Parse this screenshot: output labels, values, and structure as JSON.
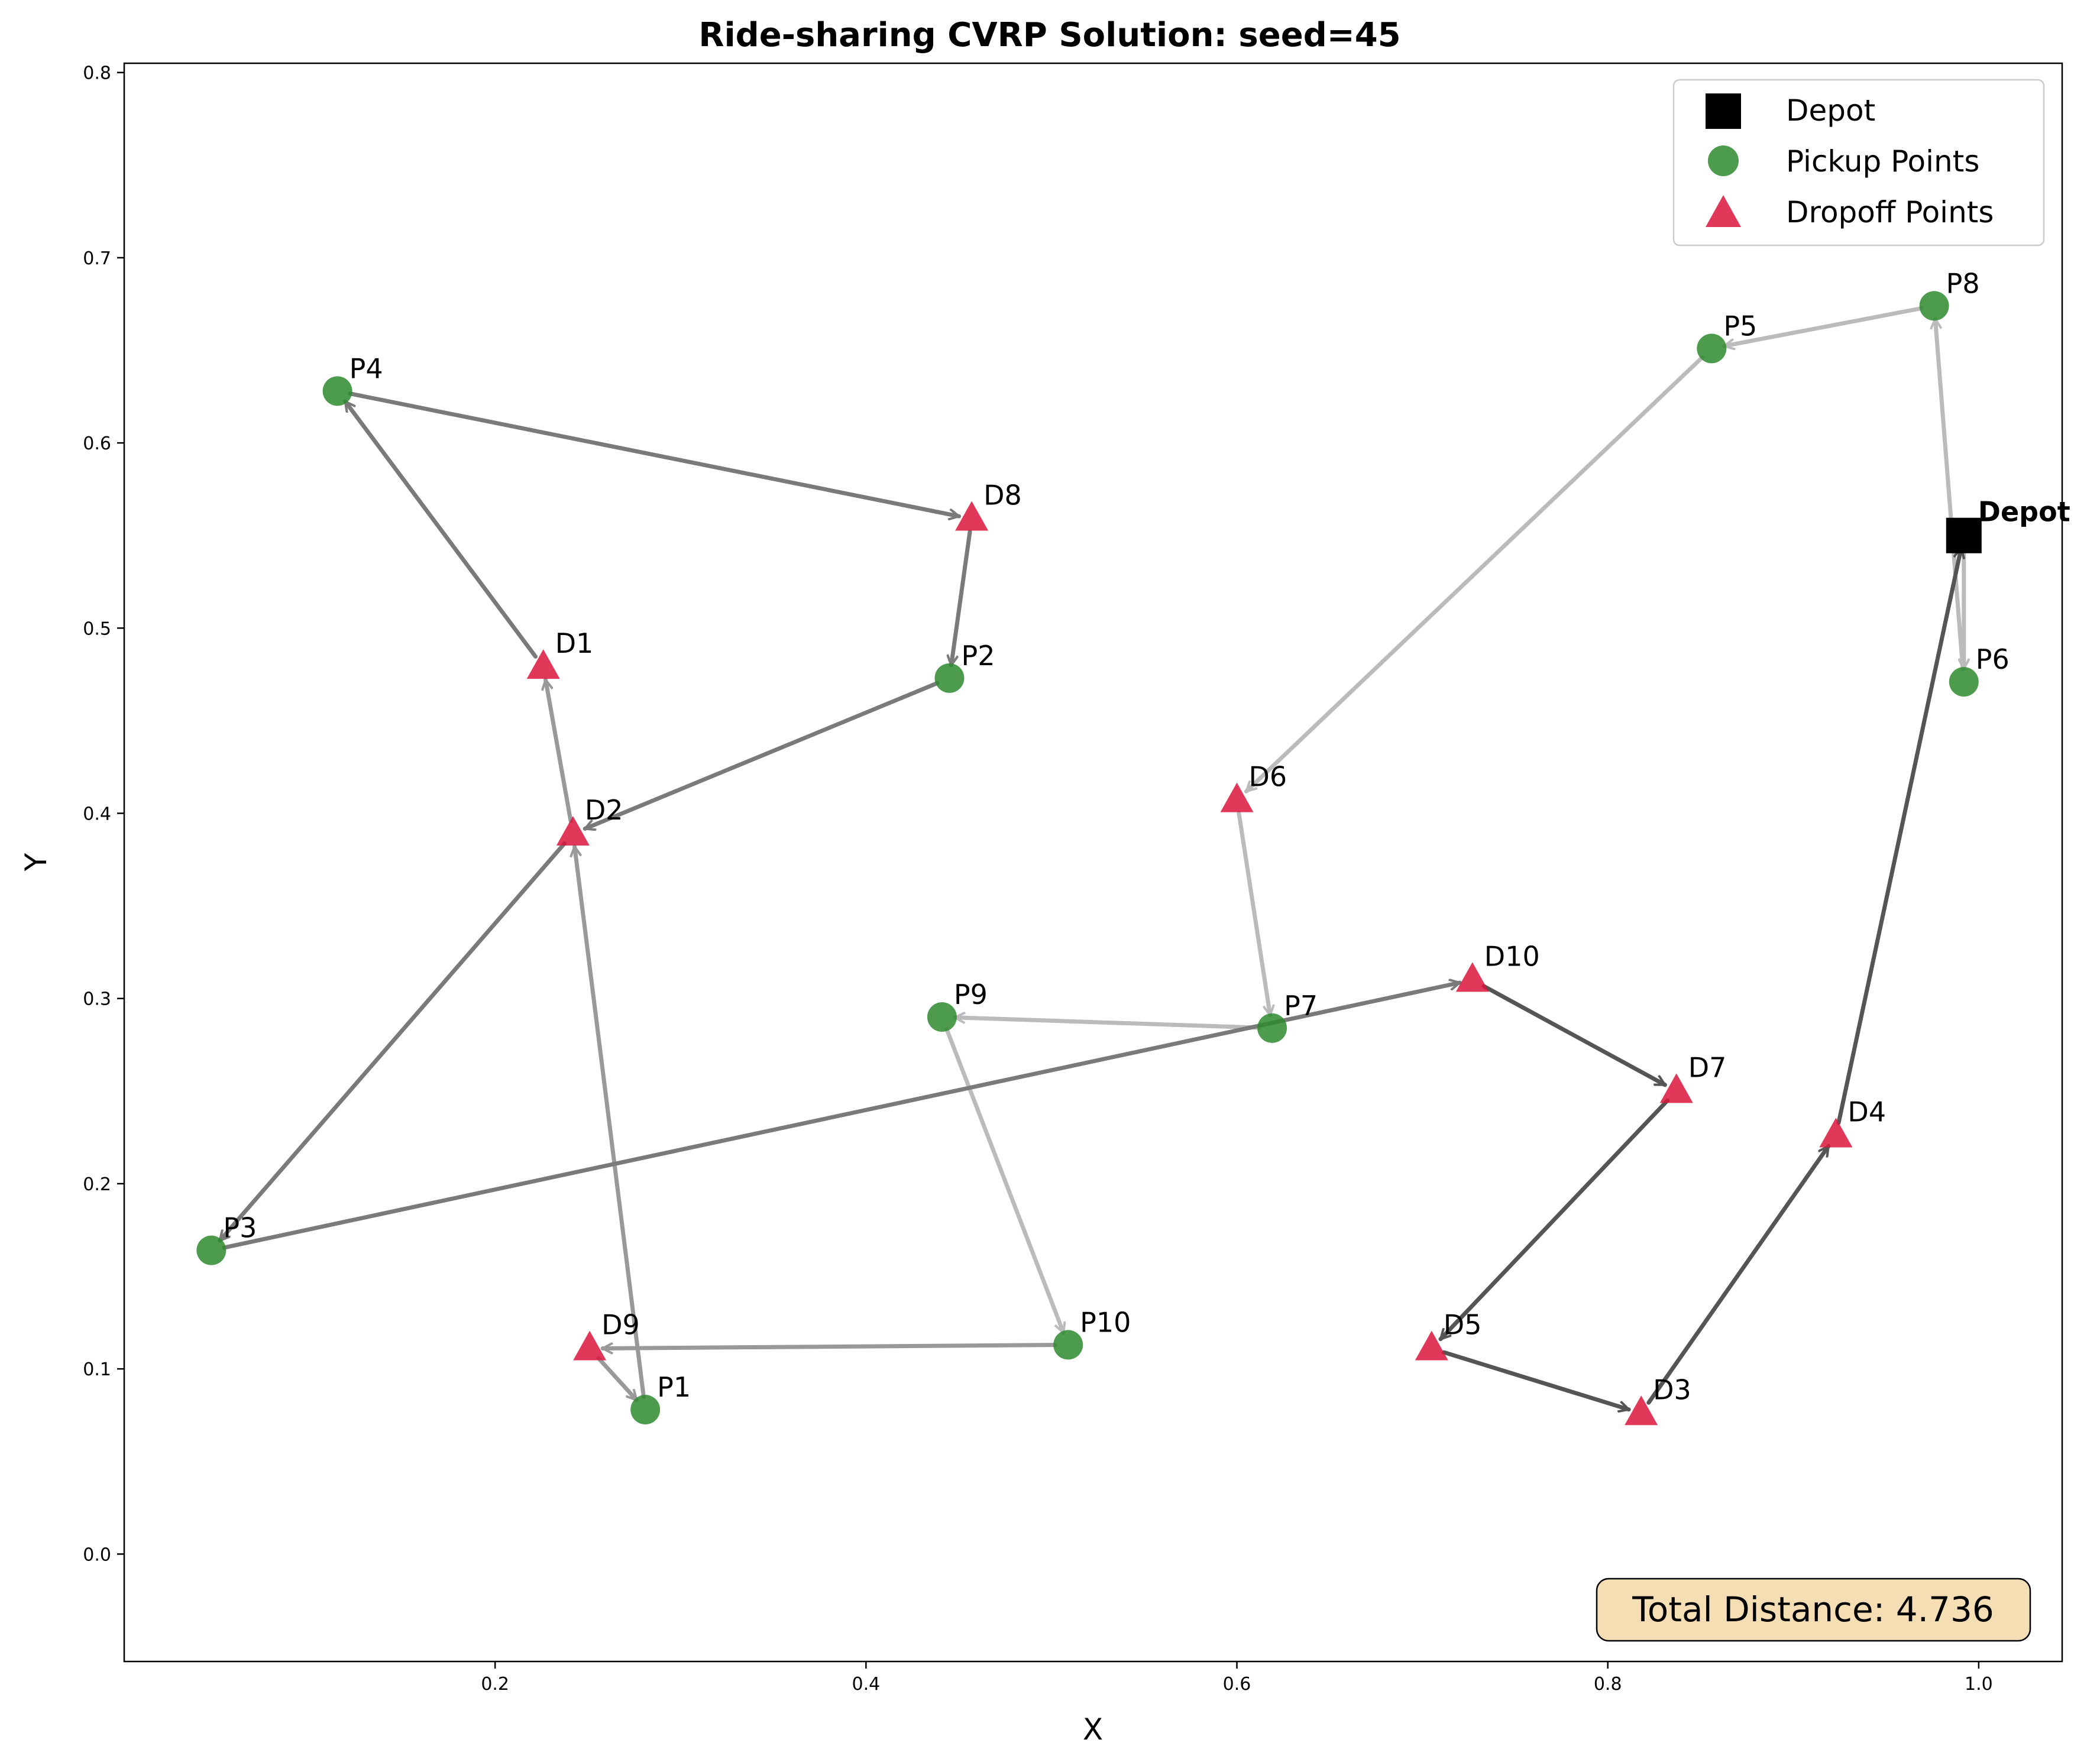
{
  "chart_data": {
    "type": "scatter",
    "title": "Ride-sharing CVRP Solution: seed=45",
    "xlabel": "X",
    "ylabel": "Y",
    "xlim": [
      0.0,
      1.045
    ],
    "ylim": [
      -0.058,
      0.805
    ],
    "xticks": [
      0.2,
      0.4,
      0.6,
      0.8,
      1.0
    ],
    "xtick_labels": [
      "0.2",
      "0.4",
      "0.6",
      "0.8",
      "1.0"
    ],
    "yticks": [
      0.0,
      0.1,
      0.2,
      0.3,
      0.4,
      0.5,
      0.6,
      0.7,
      0.8
    ],
    "ytick_labels": [
      "0.0",
      "0.1",
      "0.2",
      "0.3",
      "0.4",
      "0.5",
      "0.6",
      "0.7",
      "0.8"
    ],
    "grid": false,
    "legend_position": "top-right",
    "legend": [
      {
        "name": "Depot",
        "marker": "square",
        "color": "#000000"
      },
      {
        "name": "Pickup Points",
        "marker": "circle",
        "color": "#2e8b2e"
      },
      {
        "name": "Dropoff Points",
        "marker": "triangle",
        "color": "#dc143c"
      }
    ],
    "depot": {
      "label": "Depot",
      "x": 0.992,
      "y": 0.55
    },
    "pickups": [
      {
        "label": "P1",
        "x": 0.281,
        "y": 0.078
      },
      {
        "label": "P2",
        "x": 0.445,
        "y": 0.473
      },
      {
        "label": "P3",
        "x": 0.047,
        "y": 0.164
      },
      {
        "label": "P4",
        "x": 0.115,
        "y": 0.628
      },
      {
        "label": "P5",
        "x": 0.856,
        "y": 0.651
      },
      {
        "label": "P6",
        "x": 0.992,
        "y": 0.471
      },
      {
        "label": "P7",
        "x": 0.619,
        "y": 0.284
      },
      {
        "label": "P8",
        "x": 0.976,
        "y": 0.674
      },
      {
        "label": "P9",
        "x": 0.441,
        "y": 0.29
      },
      {
        "label": "P10",
        "x": 0.509,
        "y": 0.113
      }
    ],
    "dropoffs": [
      {
        "label": "D1",
        "x": 0.226,
        "y": 0.479
      },
      {
        "label": "D2",
        "x": 0.242,
        "y": 0.389
      },
      {
        "label": "D3",
        "x": 0.818,
        "y": 0.076
      },
      {
        "label": "D4",
        "x": 0.923,
        "y": 0.226
      },
      {
        "label": "D5",
        "x": 0.705,
        "y": 0.111
      },
      {
        "label": "D6",
        "x": 0.6,
        "y": 0.407
      },
      {
        "label": "D7",
        "x": 0.837,
        "y": 0.25
      },
      {
        "label": "D8",
        "x": 0.457,
        "y": 0.559
      },
      {
        "label": "D9",
        "x": 0.251,
        "y": 0.111
      },
      {
        "label": "D10",
        "x": 0.727,
        "y": 0.31
      }
    ],
    "routes": [
      {
        "color": "#bbbbbb",
        "stops": [
          [
            0.992,
            0.55
          ],
          [
            0.992,
            0.471
          ],
          [
            0.976,
            0.674
          ],
          [
            0.856,
            0.651
          ],
          [
            0.6,
            0.407
          ],
          [
            0.619,
            0.284
          ],
          [
            0.441,
            0.29
          ],
          [
            0.509,
            0.113
          ]
        ]
      },
      {
        "color": "#999999",
        "stops": [
          [
            0.509,
            0.113
          ],
          [
            0.251,
            0.111
          ],
          [
            0.281,
            0.078
          ],
          [
            0.242,
            0.389
          ],
          [
            0.226,
            0.479
          ]
        ]
      },
      {
        "color": "#7a7a7a",
        "stops": [
          [
            0.226,
            0.479
          ],
          [
            0.115,
            0.628
          ],
          [
            0.457,
            0.559
          ],
          [
            0.445,
            0.473
          ],
          [
            0.242,
            0.389
          ],
          [
            0.047,
            0.164
          ],
          [
            0.727,
            0.31
          ]
        ]
      },
      {
        "color": "#555555",
        "stops": [
          [
            0.727,
            0.31
          ],
          [
            0.837,
            0.25
          ],
          [
            0.705,
            0.111
          ],
          [
            0.818,
            0.076
          ],
          [
            0.923,
            0.226
          ],
          [
            0.992,
            0.55
          ]
        ]
      }
    ],
    "annotation": {
      "total_distance": "Total Distance: 4.736"
    }
  }
}
